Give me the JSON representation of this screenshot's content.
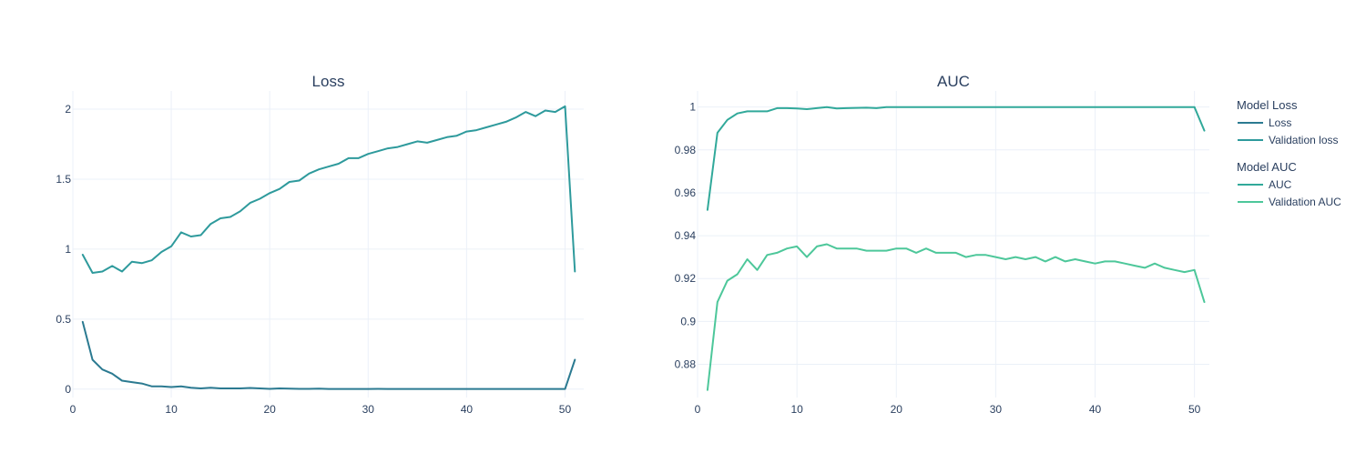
{
  "chart_data": [
    {
      "type": "line",
      "title": "Loss",
      "xlabel": "",
      "ylabel": "",
      "xlim": [
        0,
        51.9
      ],
      "ylim": [
        -0.06,
        2.13
      ],
      "xticks": [
        0,
        10,
        20,
        30,
        40,
        50
      ],
      "yticks": [
        0,
        0.5,
        1,
        1.5,
        2
      ],
      "ytick_labels": [
        "0",
        "0.5",
        "1",
        "1.5",
        "2"
      ],
      "grid": true,
      "series": [
        {
          "name": "Loss",
          "legend_group": "Model Loss",
          "color": "#2b7a91",
          "x": [
            1,
            2,
            3,
            4,
            5,
            6,
            7,
            8,
            9,
            10,
            11,
            12,
            13,
            14,
            15,
            16,
            17,
            18,
            19,
            20,
            21,
            22,
            23,
            24,
            25,
            26,
            27,
            28,
            29,
            30,
            31,
            32,
            33,
            34,
            35,
            36,
            37,
            38,
            39,
            40,
            41,
            42,
            43,
            44,
            45,
            46,
            47,
            48,
            49,
            50,
            51
          ],
          "values": [
            0.48,
            0.21,
            0.14,
            0.11,
            0.06,
            0.05,
            0.04,
            0.02,
            0.02,
            0.015,
            0.02,
            0.01,
            0.005,
            0.01,
            0.005,
            0.005,
            0.005,
            0.008,
            0.005,
            0.002,
            0.005,
            0.004,
            0.002,
            0.002,
            0.003,
            0.001,
            0.001,
            0.001,
            0.001,
            0.001,
            0.002,
            0.001,
            0.001,
            0.001,
            0.001,
            0.001,
            0.001,
            0.001,
            0.001,
            0.001,
            0.001,
            0.001,
            0.001,
            0.001,
            0.001,
            0.001,
            0.001,
            0.001,
            0.001,
            0.001,
            0.21
          ]
        },
        {
          "name": "Validation loss",
          "legend_group": "Model Loss",
          "color": "#2e9a9c",
          "x": [
            1,
            2,
            3,
            4,
            5,
            6,
            7,
            8,
            9,
            10,
            11,
            12,
            13,
            14,
            15,
            16,
            17,
            18,
            19,
            20,
            21,
            22,
            23,
            24,
            25,
            26,
            27,
            28,
            29,
            30,
            31,
            32,
            33,
            34,
            35,
            36,
            37,
            38,
            39,
            40,
            41,
            42,
            43,
            44,
            45,
            46,
            47,
            48,
            49,
            50,
            51
          ],
          "values": [
            0.96,
            0.83,
            0.84,
            0.88,
            0.84,
            0.91,
            0.9,
            0.92,
            0.98,
            1.02,
            1.12,
            1.09,
            1.1,
            1.18,
            1.22,
            1.23,
            1.27,
            1.33,
            1.36,
            1.4,
            1.43,
            1.48,
            1.49,
            1.54,
            1.57,
            1.59,
            1.61,
            1.65,
            1.65,
            1.68,
            1.7,
            1.72,
            1.73,
            1.75,
            1.77,
            1.76,
            1.78,
            1.8,
            1.81,
            1.84,
            1.85,
            1.87,
            1.89,
            1.91,
            1.94,
            1.98,
            1.95,
            1.99,
            1.98,
            2.02,
            0.84
          ]
        }
      ]
    },
    {
      "type": "line",
      "title": "AUC",
      "xlabel": "",
      "ylabel": "",
      "xlim": [
        0,
        51.5
      ],
      "ylim": [
        0.8645,
        1.0075
      ],
      "xticks": [
        0,
        10,
        20,
        30,
        40,
        50
      ],
      "yticks": [
        0.88,
        0.9,
        0.92,
        0.94,
        0.96,
        0.98,
        1
      ],
      "ytick_labels": [
        "0.88",
        "0.9",
        "0.92",
        "0.94",
        "0.96",
        "0.98",
        "1"
      ],
      "grid": true,
      "series": [
        {
          "name": "AUC",
          "legend_group": "Model AUC",
          "color": "#31a99a",
          "x": [
            1,
            2,
            3,
            4,
            5,
            6,
            7,
            8,
            9,
            10,
            11,
            12,
            13,
            14,
            15,
            16,
            17,
            18,
            19,
            20,
            21,
            22,
            23,
            24,
            25,
            26,
            27,
            28,
            29,
            30,
            31,
            32,
            33,
            34,
            35,
            36,
            37,
            38,
            39,
            40,
            41,
            42,
            43,
            44,
            45,
            46,
            47,
            48,
            49,
            50,
            51
          ],
          "values": [
            0.952,
            0.988,
            0.994,
            0.997,
            0.998,
            0.998,
            0.998,
            0.9995,
            0.9995,
            0.9993,
            0.999,
            0.9995,
            1.0,
            0.9993,
            0.9995,
            0.9996,
            0.9997,
            0.9995,
            1.0,
            1.0,
            1.0,
            1.0,
            1.0,
            1.0,
            1.0,
            1.0,
            1.0,
            1.0,
            1.0,
            1.0,
            1.0,
            1.0,
            1.0,
            1.0,
            1.0,
            1.0,
            1.0,
            1.0,
            1.0,
            1.0,
            1.0,
            1.0,
            1.0,
            1.0,
            1.0,
            1.0,
            1.0,
            1.0,
            1.0,
            1.0,
            0.989
          ]
        },
        {
          "name": "Validation AUC",
          "legend_group": "Model AUC",
          "color": "#4dc79a",
          "x": [
            1,
            2,
            3,
            4,
            5,
            6,
            7,
            8,
            9,
            10,
            11,
            12,
            13,
            14,
            15,
            16,
            17,
            18,
            19,
            20,
            21,
            22,
            23,
            24,
            25,
            26,
            27,
            28,
            29,
            30,
            31,
            32,
            33,
            34,
            35,
            36,
            37,
            38,
            39,
            40,
            41,
            42,
            43,
            44,
            45,
            46,
            47,
            48,
            49,
            50,
            51
          ],
          "values": [
            0.868,
            0.909,
            0.919,
            0.922,
            0.929,
            0.924,
            0.931,
            0.932,
            0.934,
            0.935,
            0.93,
            0.935,
            0.936,
            0.934,
            0.934,
            0.934,
            0.933,
            0.933,
            0.933,
            0.934,
            0.934,
            0.932,
            0.934,
            0.932,
            0.932,
            0.932,
            0.93,
            0.931,
            0.931,
            0.93,
            0.929,
            0.93,
            0.929,
            0.93,
            0.928,
            0.93,
            0.928,
            0.929,
            0.928,
            0.927,
            0.928,
            0.928,
            0.927,
            0.926,
            0.925,
            0.927,
            0.925,
            0.924,
            0.923,
            0.924,
            0.909
          ]
        }
      ]
    }
  ],
  "legend": {
    "placement": "right",
    "groups": [
      {
        "title": "Model Loss",
        "items": [
          {
            "label": "Loss",
            "color": "#2b7a91"
          },
          {
            "label": "Validation loss",
            "color": "#2e9a9c"
          }
        ]
      },
      {
        "title": "Model AUC",
        "items": [
          {
            "label": "AUC",
            "color": "#31a99a"
          },
          {
            "label": "Validation AUC",
            "color": "#4dc79a"
          }
        ]
      }
    ]
  }
}
